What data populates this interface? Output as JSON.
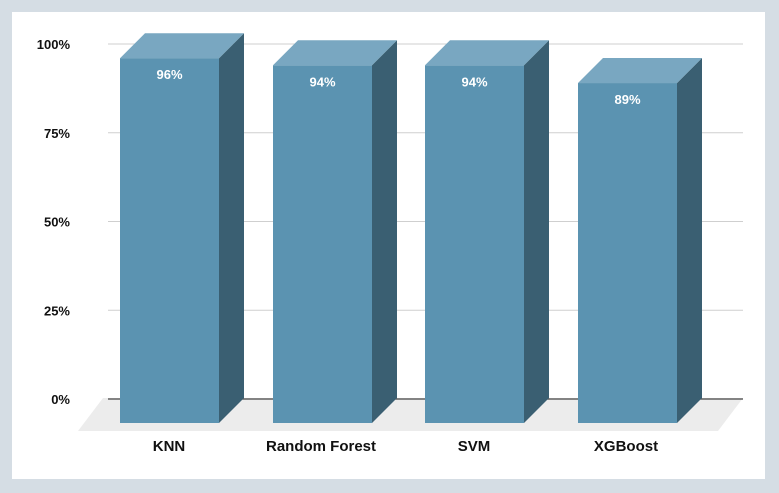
{
  "chart_data": {
    "type": "bar",
    "categories": [
      "KNN",
      "Random Forest",
      "SVM",
      "XGBoost"
    ],
    "values": [
      96,
      94,
      94,
      89
    ],
    "data_labels": [
      "96%",
      "94%",
      "94%",
      "89%"
    ],
    "y_ticks": [
      "0%",
      "25%",
      "50%",
      "75%",
      "100%"
    ],
    "y_tick_values": [
      0,
      25,
      50,
      75,
      100
    ],
    "ylim": [
      0,
      100
    ],
    "title": "",
    "xlabel": "",
    "ylabel": "",
    "grid": true,
    "legend": "none",
    "style": "3d-columns",
    "colors": {
      "bar_front": "#5b93b1",
      "bar_top": "#79a7c1",
      "bar_side": "#3a5f72",
      "floor": "#ececec",
      "grid": "#cfcfcf",
      "axis": "#444444"
    }
  }
}
